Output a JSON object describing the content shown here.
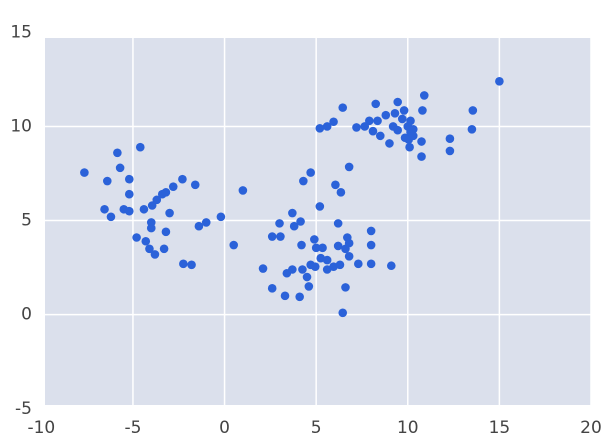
{
  "chart_data": {
    "type": "scatter",
    "x": [
      -7.65,
      -6.4,
      -5.85,
      -5.7,
      -6.55,
      -6.2,
      -5.5,
      -5.2,
      -5.2,
      -5.2,
      -4.6,
      -4.4,
      -4.8,
      -4.3,
      -4.1,
      -3.8,
      -4.0,
      -4.0,
      -3.95,
      -3.7,
      -3.4,
      -3.2,
      -2.8,
      -3.0,
      -3.2,
      -3.3,
      -2.3,
      -2.25,
      -1.8,
      -1.6,
      -1.4,
      -1.0,
      -0.2,
      0.5,
      1.0,
      2.1,
      2.6,
      2.6,
      3.0,
      3.05,
      3.3,
      3.4,
      3.7,
      3.7,
      3.8,
      4.15,
      4.2,
      4.3,
      4.1,
      4.25,
      4.5,
      4.6,
      4.7,
      4.7,
      4.9,
      5.0,
      4.95,
      5.2,
      5.2,
      5.25,
      5.35,
      5.6,
      5.6,
      5.6,
      5.95,
      5.95,
      6.05,
      6.2,
      6.2,
      6.35,
      6.3,
      6.45,
      6.45,
      6.6,
      6.6,
      6.7,
      6.8,
      6.8,
      6.8,
      7.2,
      7.3,
      7.65,
      7.9,
      8.0,
      8.0,
      8.0,
      8.1,
      8.25,
      8.35,
      8.5,
      8.8,
      9.0,
      9.1,
      9.2,
      9.3,
      9.45,
      9.45,
      9.7,
      9.8,
      9.85,
      10.0,
      10.05,
      10.1,
      10.15,
      10.15,
      10.3,
      10.3,
      10.75,
      10.75,
      10.8,
      10.9,
      12.3,
      12.3,
      13.5,
      13.55,
      15.0
    ],
    "values": [
      7.55,
      7.1,
      8.6,
      7.8,
      5.6,
      5.2,
      5.6,
      5.5,
      6.4,
      7.2,
      8.9,
      5.6,
      4.1,
      3.9,
      3.5,
      3.2,
      4.9,
      4.6,
      5.8,
      6.1,
      6.4,
      6.5,
      6.8,
      5.4,
      4.4,
      3.5,
      7.2,
      2.7,
      2.65,
      6.9,
      4.7,
      4.9,
      5.2,
      3.7,
      6.6,
      2.45,
      1.4,
      4.15,
      4.85,
      4.15,
      1.0,
      2.2,
      2.4,
      5.4,
      4.7,
      4.95,
      3.7,
      7.1,
      0.95,
      2.4,
      2.0,
      1.5,
      2.65,
      7.55,
      4.0,
      3.55,
      2.55,
      5.75,
      9.9,
      3.0,
      3.55,
      10.0,
      2.9,
      2.4,
      10.25,
      2.55,
      6.9,
      4.85,
      3.65,
      6.5,
      2.65,
      11.0,
      0.1,
      3.5,
      1.45,
      4.1,
      3.8,
      7.85,
      3.1,
      9.95,
      2.7,
      10.0,
      10.3,
      4.45,
      3.7,
      2.7,
      9.75,
      11.2,
      10.3,
      9.5,
      10.6,
      9.1,
      2.6,
      10.0,
      10.7,
      11.3,
      9.8,
      10.4,
      10.85,
      9.4,
      10.0,
      9.3,
      8.9,
      10.3,
      9.7,
      9.85,
      9.5,
      8.4,
      9.2,
      10.85,
      11.65,
      9.35,
      8.7,
      9.85,
      10.85,
      12.4
    ],
    "color": "#2b62d9",
    "xlim": [
      -9.8,
      20
    ],
    "ylim": [
      -4.8,
      14.7
    ],
    "xticks": [
      -10,
      -5,
      0,
      5,
      10,
      15,
      20
    ],
    "yticks": [
      -5,
      0,
      5,
      10,
      15
    ],
    "grid": true
  }
}
